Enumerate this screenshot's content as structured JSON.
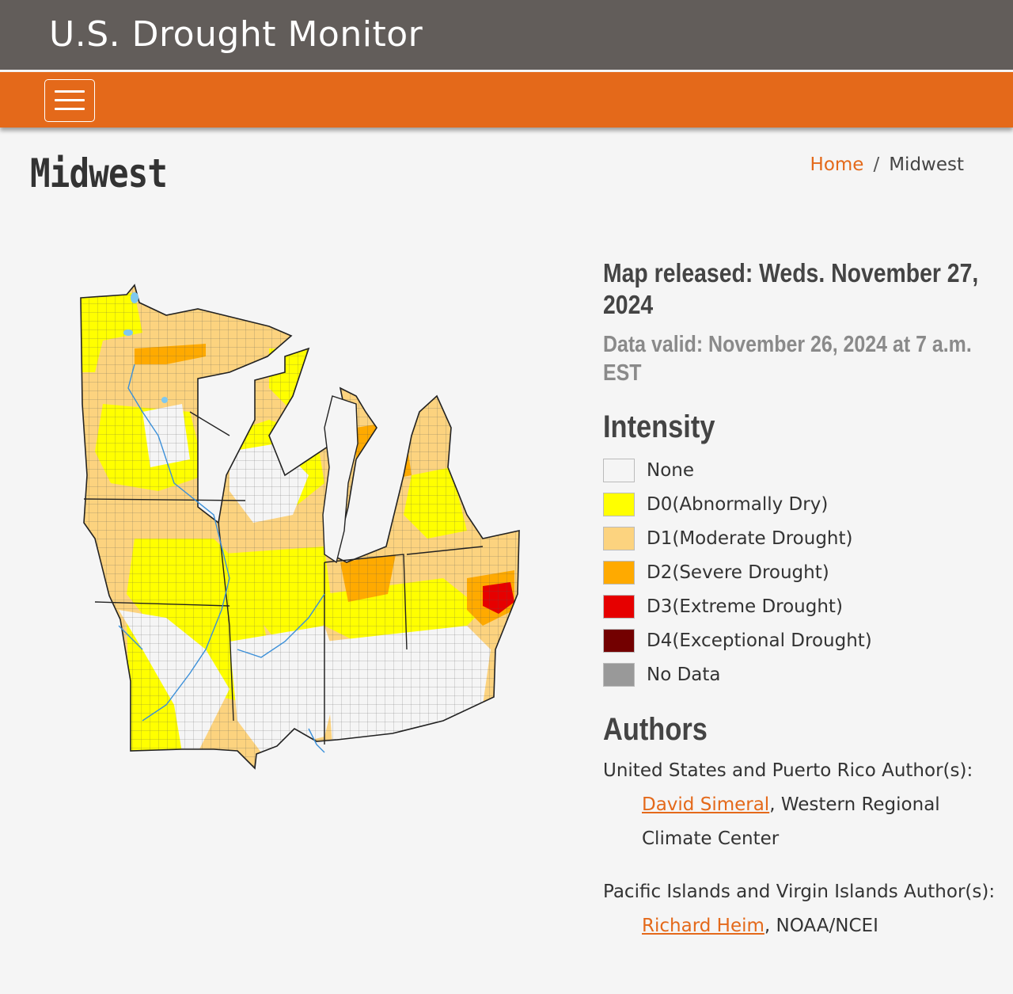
{
  "header": {
    "site_title": "U.S. Drought Monitor"
  },
  "nav": {
    "menu_icon": "hamburger-menu-icon"
  },
  "page": {
    "title": "Midwest"
  },
  "breadcrumb": {
    "home": "Home",
    "separator": "/",
    "current": "Midwest"
  },
  "map_info": {
    "released": "Map released: Weds. November 27, 2024",
    "valid": "Data valid: November 26, 2024 at 7 a.m. EST"
  },
  "intensity": {
    "heading": "Intensity",
    "items": [
      {
        "code": "None",
        "desc": "",
        "color": "#f5f5f5"
      },
      {
        "code": "D0",
        "desc": " (Abnormally Dry)",
        "color": "#ffff00"
      },
      {
        "code": "D1",
        "desc": " (Moderate Drought)",
        "color": "#fcd37f"
      },
      {
        "code": "D2",
        "desc": " (Severe Drought)",
        "color": "#ffaa00"
      },
      {
        "code": "D3",
        "desc": " (Extreme Drought)",
        "color": "#e60000"
      },
      {
        "code": "D4",
        "desc": " (Exceptional Drought)",
        "color": "#730000"
      },
      {
        "code": "No Data",
        "desc": "",
        "color": "#999999"
      }
    ]
  },
  "authors": {
    "heading": "Authors",
    "groups": [
      {
        "label": "United States and Puerto Rico Author(s):",
        "name": "David Simeral",
        "affiliation": ", Western Regional Climate Center"
      },
      {
        "label": "Pacific Islands and Virgin Islands Author(s):",
        "name": "Richard Heim",
        "affiliation": ", NOAA/NCEI"
      }
    ]
  },
  "colors": {
    "header_bg": "#625d5a",
    "nav_bg": "#e4691a",
    "accent": "#e4691a"
  }
}
